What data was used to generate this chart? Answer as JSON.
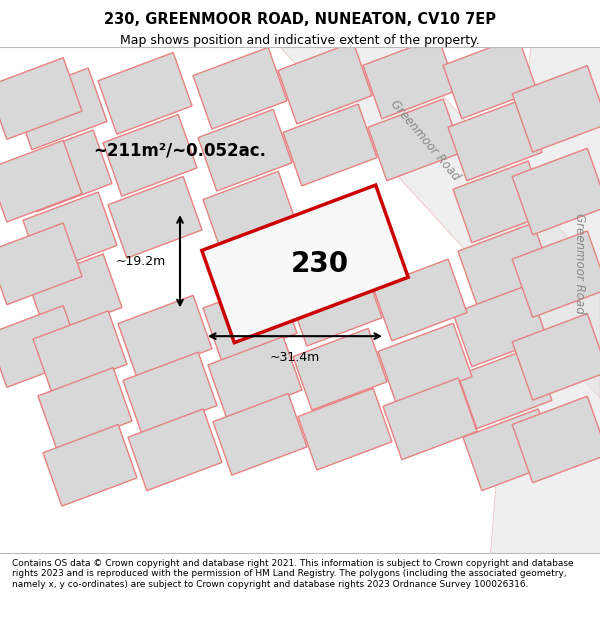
{
  "title_line1": "230, GREENMOOR ROAD, NUNEATON, CV10 7EP",
  "title_line2": "Map shows position and indicative extent of the property.",
  "footer_text": "Contains OS data © Crown copyright and database right 2021. This information is subject to Crown copyright and database rights 2023 and is reproduced with the permission of HM Land Registry. The polygons (including the associated geometry, namely x, y co-ordinates) are subject to Crown copyright and database rights 2023 Ordnance Survey 100026316.",
  "map_bg": "#f0f0f0",
  "plot_fill": "#d8d8d8",
  "road_label1": "Greenmoor Road",
  "road_label2": "Greenmoor Road",
  "area_label": "~211m²/~0.052ac.",
  "plot_number": "230",
  "dim_width": "~31.4m",
  "dim_height": "~19.2m",
  "highlight_color": "#cc0000",
  "line_color": "#e88080",
  "road_color": "#c8c8c8"
}
